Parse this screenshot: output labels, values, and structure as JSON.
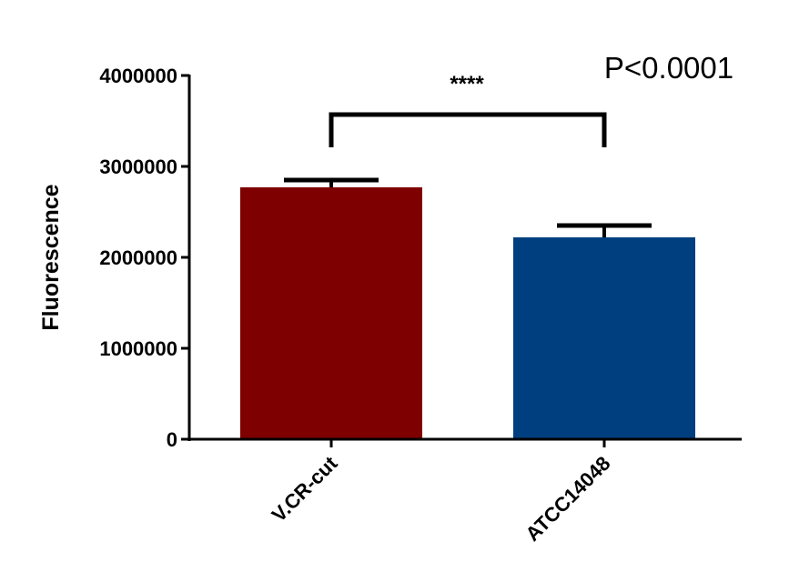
{
  "chart_data": {
    "type": "bar",
    "categories": [
      "V.CR-cut",
      "ATCC14048"
    ],
    "values": [
      2770000,
      2220000
    ],
    "errors": [
      80000,
      130000
    ],
    "bar_colors": [
      "#7f0000",
      "#003f7f"
    ],
    "ylabel": "Fluorescence",
    "ylim": [
      0,
      4000000
    ],
    "yticks": [
      0,
      1000000,
      2000000,
      3000000,
      4000000
    ],
    "ytick_labels": [
      "0",
      "1000000",
      "2000000",
      "3000000",
      "4000000"
    ],
    "significance": {
      "between": [
        0,
        1
      ],
      "label": "****"
    },
    "annotation": "P<0.0001",
    "grid": false
  }
}
